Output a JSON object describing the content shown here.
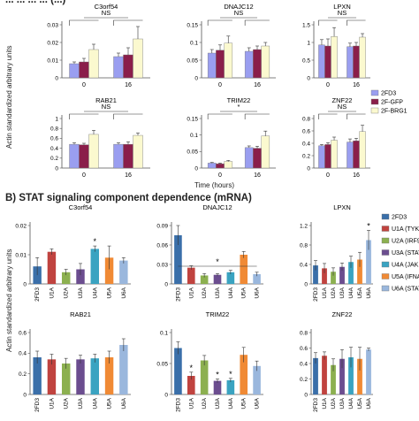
{
  "section_a": {
    "title_fragment": "... ... ... ... (...)"
  },
  "section_b": {
    "title": "B) STAT signaling component dependence (mRNA)"
  },
  "panel_a": {
    "ylabel": "Actin standardized arbitrary units",
    "xlabel": "Time (hours)",
    "legend": [
      "2FD3",
      "2F-GFP",
      "2F-BRG1"
    ],
    "colors": [
      "#9a9ef0",
      "#8a1e4a",
      "#fbf9cf"
    ]
  },
  "panel_b": {
    "ylabel": "Actin standardized arbitrary units",
    "legend": [
      "2FD3",
      "U1A (TYK2)",
      "U2A (IRF9)",
      "U3A (STAT1)",
      "U4A (JAK1)",
      "U5A (IFNAR2)",
      "U6A (STAT2)"
    ],
    "colors": [
      "#3a6fa9",
      "#c0433f",
      "#8cb050",
      "#6b4d8f",
      "#3aa3c1",
      "#f08a35",
      "#9ab7dd"
    ]
  },
  "chart_data": [
    {
      "type": "bar",
      "title": "C3orf54",
      "categories": [
        "0",
        "16"
      ],
      "series": [
        {
          "name": "2FD3",
          "values": [
            0.008,
            0.012
          ],
          "errors": [
            0.001,
            0.002
          ]
        },
        {
          "name": "2F-GFP",
          "values": [
            0.009,
            0.013
          ],
          "errors": [
            0.002,
            0.004
          ]
        },
        {
          "name": "2F-BRG1",
          "values": [
            0.016,
            0.022
          ],
          "errors": [
            0.003,
            0.007
          ]
        }
      ],
      "ylim": [
        0,
        0.03
      ],
      "yticks": [
        0,
        0.01,
        0.02,
        0.03
      ],
      "annotations": [
        "NS"
      ]
    },
    {
      "type": "bar",
      "title": "DNAJC12",
      "categories": [
        "0",
        "16"
      ],
      "series": [
        {
          "name": "2FD3",
          "values": [
            0.07,
            0.075
          ],
          "errors": [
            0.01,
            0.01
          ]
        },
        {
          "name": "2F-GFP",
          "values": [
            0.078,
            0.08
          ],
          "errors": [
            0.015,
            0.01
          ]
        },
        {
          "name": "2F-BRG1",
          "values": [
            0.098,
            0.09
          ],
          "errors": [
            0.02,
            0.01
          ]
        }
      ],
      "ylim": [
        0,
        0.15
      ],
      "yticks": [
        0,
        0.05,
        0.1,
        0.15
      ],
      "annotations": [
        "NS"
      ]
    },
    {
      "type": "bar",
      "title": "LPXN",
      "categories": [
        "0",
        "16"
      ],
      "series": [
        {
          "name": "2FD3",
          "values": [
            0.93,
            0.88
          ],
          "errors": [
            0.15,
            0.1
          ]
        },
        {
          "name": "2F-GFP",
          "values": [
            0.9,
            0.9
          ],
          "errors": [
            0.2,
            0.1
          ]
        },
        {
          "name": "2F-BRG1",
          "values": [
            1.17,
            1.15
          ],
          "errors": [
            0.25,
            0.1
          ]
        }
      ],
      "ylim": [
        0,
        1.5
      ],
      "yticks": [
        0,
        0.5,
        1,
        1.5
      ],
      "annotations": [
        "NS"
      ]
    },
    {
      "type": "bar",
      "title": "RAB21",
      "categories": [
        "0",
        "16"
      ],
      "series": [
        {
          "name": "2FD3",
          "values": [
            0.48,
            0.48
          ],
          "errors": [
            0.03,
            0.03
          ]
        },
        {
          "name": "2F-GFP",
          "values": [
            0.47,
            0.48
          ],
          "errors": [
            0.03,
            0.05
          ]
        },
        {
          "name": "2F-BRG1",
          "values": [
            0.68,
            0.66
          ],
          "errors": [
            0.08,
            0.05
          ]
        }
      ],
      "ylim": [
        0,
        1
      ],
      "yticks": [
        0,
        0.2,
        0.4,
        0.6,
        0.8,
        1
      ],
      "annotations": [
        "NS"
      ]
    },
    {
      "type": "bar",
      "title": "TRIM22",
      "categories": [
        "0",
        "16"
      ],
      "series": [
        {
          "name": "2FD3",
          "values": [
            0.015,
            0.062
          ],
          "errors": [
            0.002,
            0.005
          ]
        },
        {
          "name": "2F-GFP",
          "values": [
            0.013,
            0.06
          ],
          "errors": [
            0.002,
            0.006
          ]
        },
        {
          "name": "2F-BRG1",
          "values": [
            0.02,
            0.097
          ],
          "errors": [
            0.003,
            0.015
          ]
        }
      ],
      "ylim": [
        0,
        0.15
      ],
      "yticks": [
        0,
        0.05,
        0.1,
        0.15
      ],
      "annotations": [
        "*"
      ]
    },
    {
      "type": "bar",
      "title": "ZNF22",
      "categories": [
        "0",
        "16"
      ],
      "series": [
        {
          "name": "2FD3",
          "values": [
            0.36,
            0.42
          ],
          "errors": [
            0.02,
            0.05
          ]
        },
        {
          "name": "2F-GFP",
          "values": [
            0.38,
            0.44
          ],
          "errors": [
            0.03,
            0.04
          ]
        },
        {
          "name": "2F-BRG1",
          "values": [
            0.45,
            0.59
          ],
          "errors": [
            0.05,
            0.1
          ]
        }
      ],
      "ylim": [
        0,
        0.8
      ],
      "yticks": [
        0,
        0.2,
        0.4,
        0.6,
        0.8
      ],
      "annotations": [
        "NS"
      ]
    },
    {
      "type": "bar",
      "title": "C3orf54",
      "categories": [
        "2FD3",
        "U1A",
        "U2A",
        "U3A",
        "U4A",
        "U5A",
        "U6A"
      ],
      "values": [
        0.006,
        0.011,
        0.004,
        0.005,
        0.012,
        0.009,
        0.008
      ],
      "errors": [
        0.003,
        0.001,
        0.001,
        0.002,
        0.001,
        0.004,
        0.001
      ],
      "stars": [
        false,
        false,
        false,
        false,
        true,
        false,
        false
      ],
      "ylim": [
        0,
        0.02
      ],
      "yticks": [
        0,
        0.01,
        0.02
      ]
    },
    {
      "type": "bar",
      "title": "DNAJC12",
      "categories": [
        "2FD3",
        "U1A",
        "U2A",
        "U3A",
        "U4A",
        "U5A",
        "U6A"
      ],
      "values": [
        0.075,
        0.025,
        0.013,
        0.014,
        0.018,
        0.045,
        0.015
      ],
      "errors": [
        0.015,
        0.003,
        0.003,
        0.002,
        0.003,
        0.005,
        0.003
      ],
      "stars": [
        false,
        false,
        false,
        false,
        false,
        false,
        false
      ],
      "ylim": [
        0,
        0.09
      ],
      "yticks": [
        0,
        0.03,
        0.06,
        0.09
      ],
      "annotations": [
        "*"
      ]
    },
    {
      "type": "bar",
      "title": "LPXN",
      "categories": [
        "2FD3",
        "U1A",
        "U2A",
        "U3A",
        "U4A",
        "U5A",
        "U6A"
      ],
      "values": [
        0.38,
        0.32,
        0.25,
        0.35,
        0.45,
        0.5,
        0.9
      ],
      "errors": [
        0.1,
        0.1,
        0.08,
        0.08,
        0.12,
        0.15,
        0.2
      ],
      "stars": [
        false,
        false,
        false,
        false,
        false,
        false,
        true
      ],
      "ylim": [
        0,
        1.2
      ],
      "yticks": [
        0,
        0.4,
        0.8,
        1.2
      ]
    },
    {
      "type": "bar",
      "title": "RAB21",
      "categories": [
        "2FD3",
        "U1A",
        "U2A",
        "U3A",
        "U4A",
        "U5A",
        "U6A"
      ],
      "values": [
        0.36,
        0.34,
        0.3,
        0.34,
        0.35,
        0.36,
        0.48
      ],
      "errors": [
        0.06,
        0.05,
        0.05,
        0.04,
        0.04,
        0.06,
        0.06
      ],
      "stars": [
        false,
        false,
        false,
        false,
        false,
        false,
        false
      ],
      "ylim": [
        0,
        0.6
      ],
      "yticks": [
        0,
        0.2,
        0.4,
        0.6
      ]
    },
    {
      "type": "bar",
      "title": "TRIM22",
      "categories": [
        "2FD3",
        "U1A",
        "U2A",
        "U3A",
        "U4A",
        "U5A",
        "U6A"
      ],
      "values": [
        0.075,
        0.03,
        0.055,
        0.022,
        0.023,
        0.064,
        0.046
      ],
      "errors": [
        0.01,
        0.006,
        0.008,
        0.003,
        0.003,
        0.012,
        0.008
      ],
      "stars": [
        false,
        true,
        false,
        true,
        true,
        false,
        false
      ],
      "ylim": [
        0,
        0.1
      ],
      "yticks": [
        0,
        0.05,
        0.1
      ]
    },
    {
      "type": "bar",
      "title": "ZNF22",
      "categories": [
        "2FD3",
        "U1A",
        "U2A",
        "U3A",
        "U4A",
        "U5A",
        "U6A"
      ],
      "values": [
        0.47,
        0.5,
        0.38,
        0.46,
        0.48,
        0.46,
        0.58
      ],
      "errors": [
        0.07,
        0.05,
        0.08,
        0.12,
        0.13,
        0.15,
        0.02
      ],
      "stars": [
        false,
        false,
        false,
        false,
        false,
        false,
        false
      ],
      "ylim": [
        0,
        0.8
      ],
      "yticks": [
        0,
        0.2,
        0.4,
        0.6,
        0.8
      ]
    }
  ]
}
